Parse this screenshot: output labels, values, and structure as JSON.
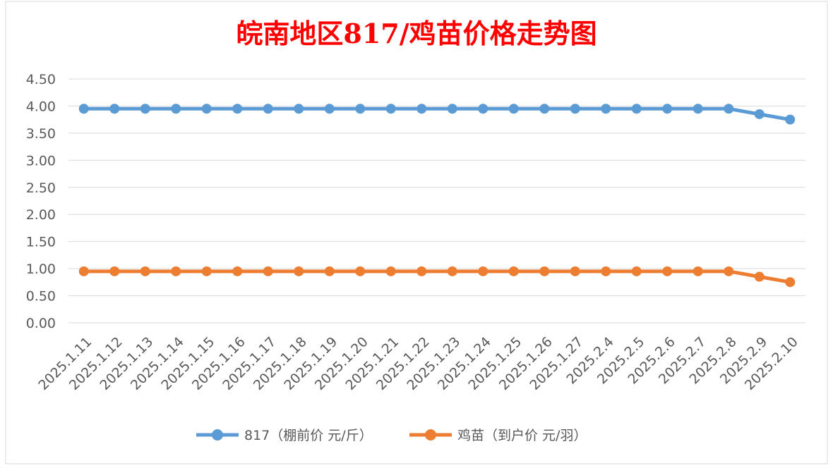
{
  "chart_data": {
    "type": "line",
    "title": "皖南地区817/鸡苗价格走势图",
    "title_color": "#ff0000",
    "categories": [
      "2025.1.11",
      "2025.1.12",
      "2025.1.13",
      "2025.1.14",
      "2025.1.15",
      "2025.1.16",
      "2025.1.17",
      "2025.1.18",
      "2025.1.19",
      "2025.1.20",
      "2025.1.21",
      "2025.1.22",
      "2025.1.23",
      "2025.1.24",
      "2025.1.25",
      "2025.1.26",
      "2025.1.27",
      "2025.2.4",
      "2025.2.5",
      "2025.2.6",
      "2025.2.7",
      "2025.2.8",
      "2025.2.9",
      "2025.2.10"
    ],
    "y_ticks": [
      "0.00",
      "0.50",
      "1.00",
      "1.50",
      "2.00",
      "2.50",
      "3.00",
      "3.50",
      "4.00",
      "4.50"
    ],
    "ylim": [
      0,
      4.5
    ],
    "grid": true,
    "legend_position": "bottom",
    "series": [
      {
        "name": "817（棚前价 元/斤）",
        "color": "#5b9bd5",
        "values": [
          3.95,
          3.95,
          3.95,
          3.95,
          3.95,
          3.95,
          3.95,
          3.95,
          3.95,
          3.95,
          3.95,
          3.95,
          3.95,
          3.95,
          3.95,
          3.95,
          3.95,
          3.95,
          3.95,
          3.95,
          3.95,
          3.95,
          3.85,
          3.75
        ]
      },
      {
        "name": "鸡苗（到户价 元/羽）",
        "color": "#ed7d31",
        "values": [
          0.95,
          0.95,
          0.95,
          0.95,
          0.95,
          0.95,
          0.95,
          0.95,
          0.95,
          0.95,
          0.95,
          0.95,
          0.95,
          0.95,
          0.95,
          0.95,
          0.95,
          0.95,
          0.95,
          0.95,
          0.95,
          0.95,
          0.85,
          0.75
        ]
      }
    ]
  }
}
